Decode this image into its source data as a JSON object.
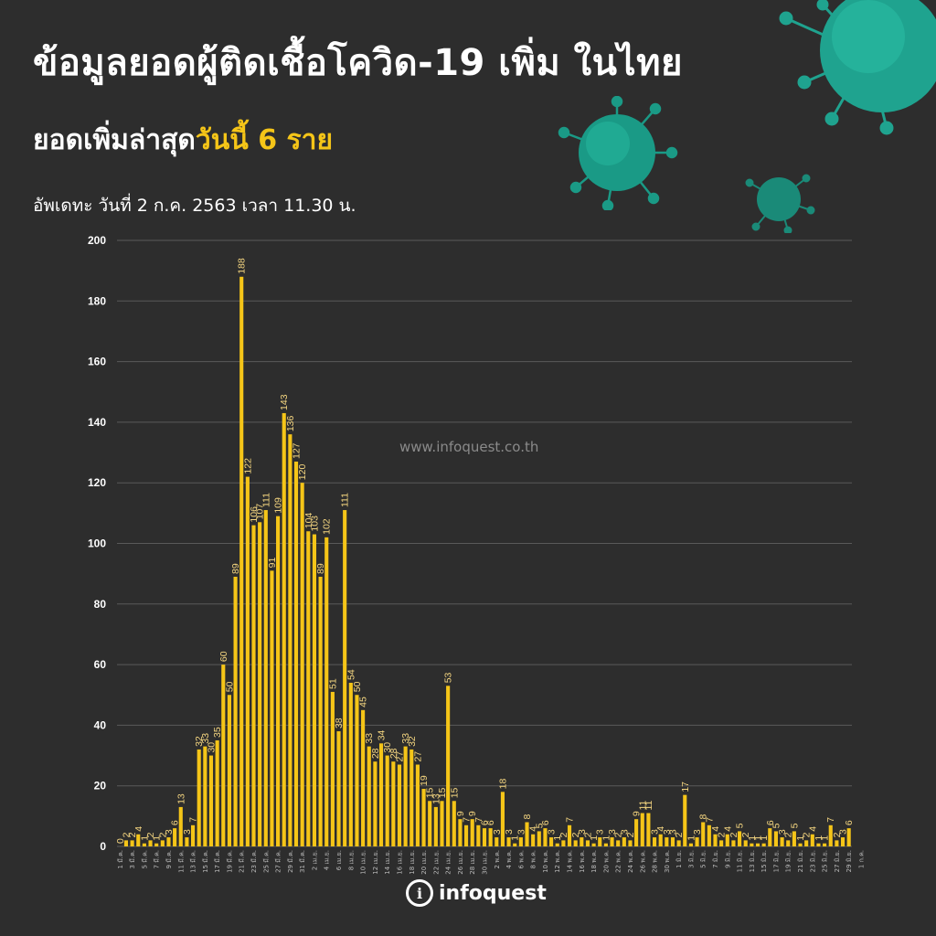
{
  "header": {
    "title": "ข้อมูลยอดผู้ติดเชื้อโควิด-19 เพิ่ม ในไทย",
    "subtitle_prefix": "ยอดเพิ่มล่าสุด",
    "subtitle_highlight": "วันนี้ 6 ราย",
    "update": "อัพเดทะ วันที่ 2 ก.ค. 2563 เวลา 11.30 น."
  },
  "watermark": "www.infoquest.co.th",
  "logo": {
    "symbol": "i",
    "text": "infoquest"
  },
  "colors": {
    "background": "#2d2d2d",
    "bar": "#f5c518",
    "text": "#ffffff",
    "label": "#f5d680",
    "grid": "#5a5a5a",
    "virus": "#1fa38f"
  },
  "chart_data": {
    "type": "bar",
    "title": "",
    "xlabel": "",
    "ylabel": "",
    "ylim": [
      0,
      200
    ],
    "yticks": [
      0,
      20,
      40,
      60,
      80,
      100,
      120,
      140,
      160,
      180,
      200
    ],
    "grid": true,
    "series": [
      {
        "values": [
          0,
          2,
          2,
          4,
          1,
          2,
          1,
          2,
          3,
          6,
          13,
          3,
          7,
          32,
          33,
          30,
          35,
          60,
          50,
          89,
          188,
          122,
          106,
          107,
          111,
          91,
          109,
          143,
          136,
          127,
          120,
          104,
          103,
          89,
          102,
          51,
          38,
          111,
          54,
          50,
          45,
          33,
          28,
          34,
          30,
          28,
          27,
          33,
          32,
          27,
          19,
          15,
          13,
          15,
          53,
          15,
          9,
          7,
          9,
          7,
          6,
          6,
          3,
          18,
          3,
          1,
          3,
          8,
          4,
          5,
          6,
          3,
          1,
          2,
          7,
          2,
          3,
          2,
          1,
          3,
          1,
          3,
          2,
          3,
          2,
          9,
          11,
          11,
          3,
          4,
          3,
          3,
          2,
          17,
          1,
          3,
          8,
          7,
          4,
          2,
          4,
          2,
          5,
          2,
          1,
          1,
          1,
          6,
          5,
          3,
          2,
          5,
          1,
          2,
          4,
          1,
          1,
          7,
          2,
          3,
          6
        ]
      }
    ],
    "data_labels": [
      0,
      2,
      2,
      4,
      1,
      2,
      1,
      2,
      3,
      6,
      13,
      3,
      7,
      32,
      33,
      30,
      35,
      60,
      50,
      89,
      188,
      122,
      106,
      107,
      111,
      91,
      109,
      143,
      136,
      127,
      120,
      104,
      103,
      89,
      102,
      51,
      38,
      111,
      54,
      50,
      45,
      33,
      28,
      34,
      30,
      28,
      27,
      33,
      32,
      27,
      19,
      15,
      13,
      15,
      53,
      15,
      9,
      7,
      9,
      7,
      6,
      6,
      3,
      18,
      3,
      1,
      3,
      8,
      4,
      5,
      6,
      3,
      1,
      2,
      7,
      2,
      3,
      2,
      1,
      3,
      1,
      3,
      2,
      3,
      2,
      9,
      11,
      11,
      3,
      4,
      3,
      3,
      2,
      17,
      1,
      3,
      8,
      7,
      4,
      2,
      4,
      2,
      5,
      2,
      1,
      1,
      1,
      6,
      5,
      3,
      2,
      5,
      1,
      2,
      4,
      1,
      1,
      7,
      2,
      3,
      6
    ],
    "tick_labels": [
      "1 มี.ค.",
      "3 มี.ค.",
      "5 มี.ค.",
      "7 มี.ค.",
      "9 มี.ค.",
      "11 มี.ค.",
      "13 มี.ค.",
      "15 มี.ค.",
      "17 มี.ค.",
      "19 มี.ค.",
      "21 มี.ค.",
      "23 มี.ค.",
      "25 มี.ค.",
      "27 มี.ค.",
      "29 มี.ค.",
      "31 มี.ค.",
      "2 เม.ย.",
      "4 เม.ย.",
      "6 เม.ย.",
      "8 เม.ย.",
      "10 เม.ย.",
      "12 เม.ย.",
      "14 เม.ย.",
      "16 เม.ย.",
      "18 เม.ย.",
      "20 เม.ย.",
      "22 เม.ย.",
      "24 เม.ย.",
      "26 เม.ย.",
      "28 เม.ย.",
      "30 เม.ย.",
      "2 พ.ค.",
      "4 พ.ค.",
      "6 พ.ค.",
      "8 พ.ค.",
      "10 พ.ค.",
      "12 พ.ค.",
      "14 พ.ค.",
      "16 พ.ค.",
      "18 พ.ค.",
      "20 พ.ค.",
      "22 พ.ค.",
      "24 พ.ค.",
      "26 พ.ค.",
      "28 พ.ค.",
      "30 พ.ค.",
      "1 มิ.ย.",
      "3 มิ.ย.",
      "5 มิ.ย.",
      "7 มิ.ย.",
      "9 มิ.ย.",
      "11 มิ.ย.",
      "13 มิ.ย.",
      "15 มิ.ย.",
      "17 มิ.ย.",
      "19 มิ.ย.",
      "21 มิ.ย.",
      "23 มิ.ย.",
      "25 มิ.ย.",
      "27 มิ.ย.",
      "29 มิ.ย.",
      "1 ก.ค."
    ]
  }
}
